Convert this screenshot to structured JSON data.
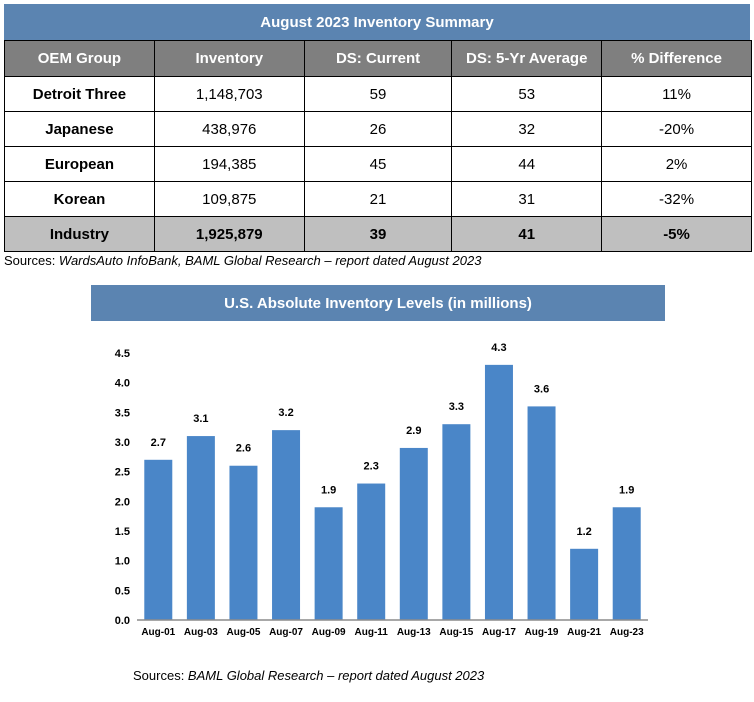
{
  "table": {
    "title": "August 2023 Inventory Summary",
    "headers": [
      "OEM Group",
      "Inventory",
      "DS: Current",
      "DS: 5-Yr Average",
      "% Difference"
    ],
    "rows": [
      [
        "Detroit Three",
        "1,148,703",
        "59",
        "53",
        "11%"
      ],
      [
        "Japanese",
        "438,976",
        "26",
        "32",
        "-20%"
      ],
      [
        "European",
        "194,385",
        "45",
        "44",
        "2%"
      ],
      [
        "Korean",
        "109,875",
        "21",
        "31",
        "-32%"
      ]
    ],
    "total": [
      "Industry",
      "1,925,879",
      "39",
      "41",
      "-5%"
    ],
    "source_prefix": "Sources: ",
    "source_italic": "WardsAuto InfoBank, BAML Global Research – report dated August 2023"
  },
  "chart_data": {
    "type": "bar",
    "title": "U.S. Absolute Inventory Levels (in millions)",
    "categories": [
      "Aug-01",
      "Aug-03",
      "Aug-05",
      "Aug-07",
      "Aug-09",
      "Aug-11",
      "Aug-13",
      "Aug-15",
      "Aug-17",
      "Aug-19",
      "Aug-21",
      "Aug-23"
    ],
    "values": [
      2.7,
      3.1,
      2.6,
      3.2,
      1.9,
      2.3,
      2.9,
      3.3,
      4.3,
      3.6,
      1.2,
      1.9
    ],
    "data_labels": [
      "2.7",
      "3.1",
      "2.6",
      "3.2",
      "1.9",
      "2.3",
      "2.9",
      "3.3",
      "4.3",
      "3.6",
      "1.2",
      "1.9"
    ],
    "yticks": [
      "0.0",
      "0.5",
      "1.0",
      "1.5",
      "2.0",
      "2.5",
      "3.0",
      "3.5",
      "4.0",
      "4.5"
    ],
    "ylim": [
      0,
      4.5
    ],
    "xlabel": "",
    "ylabel": "",
    "grid": false,
    "bar_color": "#4a86c8"
  },
  "chart_source": {
    "prefix": "Sources: ",
    "italic": "BAML Global Research – report dated August 2023"
  }
}
